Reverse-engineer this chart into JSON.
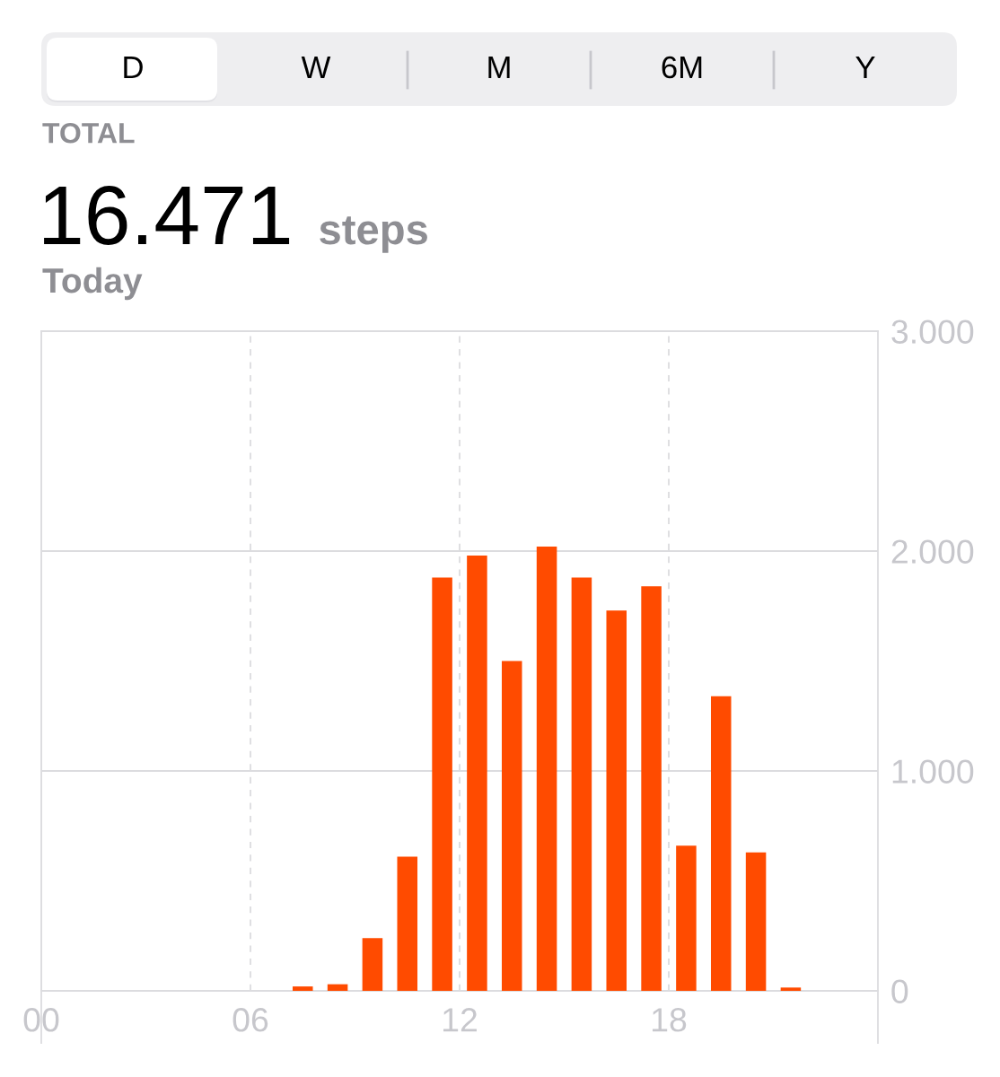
{
  "chart_data": {
    "type": "bar",
    "title": "16.471 steps",
    "subtitle": "Today",
    "annotations": [
      "D",
      "W",
      "M",
      "6M",
      "Y",
      "TOTAL"
    ],
    "x": [
      7.5,
      8.5,
      9.5,
      10.5,
      11.5,
      12.5,
      13.5,
      14.5,
      15.5,
      16.5,
      17.5,
      18.5,
      19.5,
      20.5,
      21.5
    ],
    "values": [
      20,
      30,
      240,
      610,
      1880,
      1980,
      1500,
      2020,
      1880,
      1730,
      1840,
      660,
      1340,
      630,
      15
    ],
    "color": "#ff4b00",
    "xlim": [
      0,
      24
    ],
    "xticks": [
      {
        "value": 0,
        "label": "00"
      },
      {
        "value": 6,
        "label": "06"
      },
      {
        "value": 12,
        "label": "12"
      },
      {
        "value": 18,
        "label": "18"
      }
    ],
    "ylim": [
      0,
      3000
    ],
    "yticks": [
      0,
      {
        "value": 1000,
        "label": "1.000"
      },
      {
        "value": 2000,
        "label": "2.000"
      },
      {
        "value": 3000,
        "label": "3.000"
      }
    ],
    "grid": true
  }
}
